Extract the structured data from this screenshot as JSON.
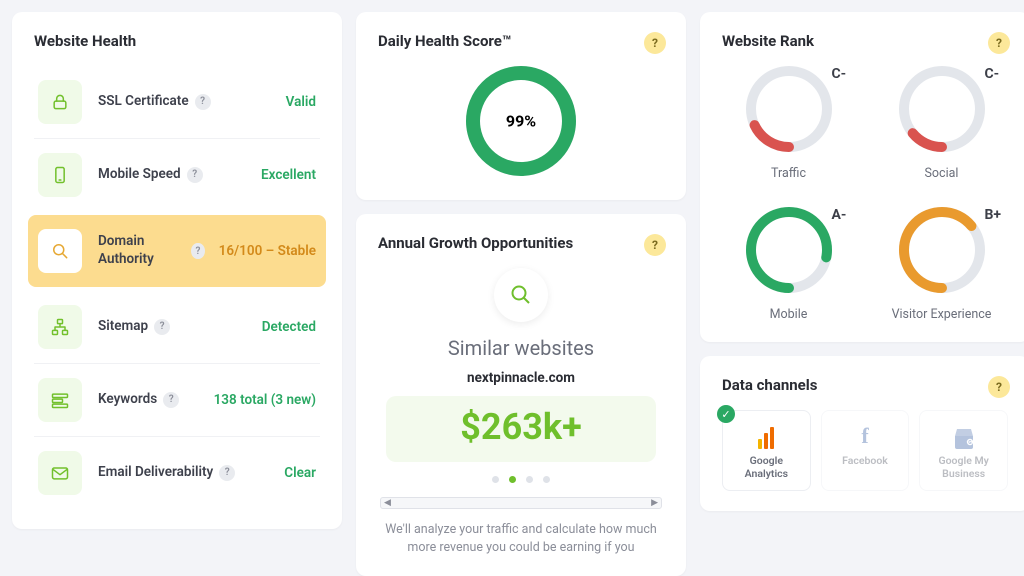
{
  "colors": {
    "bg": "#f3f4f8",
    "card": "#ffffff",
    "text": "#2a2c33",
    "muted": "#6a6e7a",
    "green": "#2aa863",
    "lime": "#6fbf2c",
    "limeBg": "#f0fae8",
    "amber": "#fcdc8f",
    "amberText": "#d38a1a",
    "orange": "#e99a2e",
    "red": "#d9534f",
    "track": "#e3e6eb",
    "helpBg": "#fce89a"
  },
  "health": {
    "title": "Website Health",
    "items": [
      {
        "icon": "lock",
        "label": "SSL Certificate",
        "value": "Valid"
      },
      {
        "icon": "mobile",
        "label": "Mobile Speed",
        "value": "Excellent"
      },
      {
        "icon": "search",
        "label": "Domain Authority",
        "value": "16/100 – Stable",
        "active": true
      },
      {
        "icon": "sitemap",
        "label": "Sitemap",
        "value": "Detected"
      },
      {
        "icon": "keywords",
        "label": "Keywords",
        "value": "138 total (3 new)"
      },
      {
        "icon": "email",
        "label": "Email Deliverability",
        "value": "Clear"
      }
    ]
  },
  "dailyScore": {
    "title": "Daily Health Score™",
    "donut": {
      "value": 99,
      "label": "99%",
      "size": 110,
      "stroke": 14,
      "color": "#2aa863",
      "track": "#e3e6eb"
    }
  },
  "growth": {
    "title": "Annual Growth Opportunities",
    "subtitle": "Similar websites",
    "domain": "nextpinnacle.com",
    "amount": "$263k+",
    "dots": {
      "count": 4,
      "active": 1
    },
    "description": "We'll analyze your traffic and calculate how much more revenue you could be earning if you"
  },
  "rank": {
    "title": "Website Rank",
    "donutSize": 86,
    "stroke": 10,
    "track": "#e3e6eb",
    "items": [
      {
        "grade": "C-",
        "label": "Traffic",
        "color": "#d9534f",
        "pct": 18
      },
      {
        "grade": "C-",
        "label": "Social",
        "color": "#d9534f",
        "pct": 14
      },
      {
        "grade": "A-",
        "label": "Mobile",
        "color": "#2aa863",
        "pct": 78
      },
      {
        "grade": "B+",
        "label": "Visitor Experience",
        "color": "#e99a2e",
        "pct": 64
      }
    ]
  },
  "channels": {
    "title": "Data channels",
    "items": [
      {
        "label": "Google Analytics",
        "icon": "ga",
        "active": true
      },
      {
        "label": "Facebook",
        "icon": "fb",
        "active": false
      },
      {
        "label": "Google My Business",
        "icon": "gmb",
        "active": false
      }
    ]
  }
}
